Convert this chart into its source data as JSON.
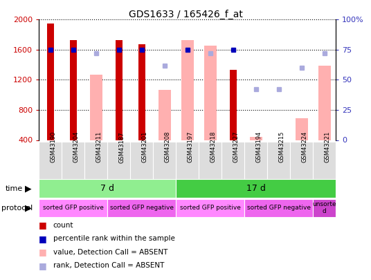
{
  "title": "GDS1633 / 165426_f_at",
  "samples": [
    "GSM43190",
    "GSM43204",
    "GSM43211",
    "GSM43187",
    "GSM43201",
    "GSM43208",
    "GSM43197",
    "GSM43218",
    "GSM43227",
    "GSM43194",
    "GSM43215",
    "GSM43224",
    "GSM43221"
  ],
  "count_values": [
    1950,
    1730,
    null,
    1730,
    1670,
    null,
    null,
    null,
    1330,
    null,
    null,
    null,
    null
  ],
  "absent_value_bars": [
    null,
    null,
    1270,
    null,
    null,
    1070,
    1730,
    1650,
    null,
    440,
    370,
    690,
    1390
  ],
  "percentile_rank": [
    75,
    75,
    null,
    75,
    75,
    null,
    75,
    null,
    75,
    null,
    null,
    null,
    null
  ],
  "absent_rank": [
    null,
    null,
    72,
    null,
    null,
    62,
    null,
    72,
    null,
    42,
    42,
    60,
    72
  ],
  "ylim_left": [
    400,
    2000
  ],
  "ylim_right": [
    0,
    100
  ],
  "yticks_left": [
    400,
    800,
    1200,
    1600,
    2000
  ],
  "yticks_right": [
    0,
    25,
    50,
    75,
    100
  ],
  "time_groups": [
    {
      "label": "7 d",
      "start": 0,
      "end": 6,
      "color": "#90EE90"
    },
    {
      "label": "17 d",
      "start": 6,
      "end": 13,
      "color": "#44CC44"
    }
  ],
  "protocol_groups": [
    {
      "label": "sorted GFP positive",
      "start": 0,
      "end": 3,
      "color": "#FF88FF"
    },
    {
      "label": "sorted GFP negative",
      "start": 3,
      "end": 6,
      "color": "#EE66EE"
    },
    {
      "label": "sorted GFP positive",
      "start": 6,
      "end": 9,
      "color": "#FF88FF"
    },
    {
      "label": "sorted GFP negative",
      "start": 9,
      "end": 12,
      "color": "#EE66EE"
    },
    {
      "label": "unsorte\nd",
      "start": 12,
      "end": 13,
      "color": "#CC44CC"
    }
  ],
  "count_color": "#CC0000",
  "absent_bar_color": "#FFB0B0",
  "percentile_color": "#0000BB",
  "absent_rank_color": "#AAAADD",
  "axis_left_color": "#CC0000",
  "axis_right_color": "#3333BB",
  "sample_cell_color": "#DDDDDD",
  "legend_items": [
    {
      "color": "#CC0000",
      "label": "count"
    },
    {
      "color": "#0000BB",
      "label": "percentile rank within the sample"
    },
    {
      "color": "#FFB0B0",
      "label": "value, Detection Call = ABSENT"
    },
    {
      "color": "#AAAADD",
      "label": "rank, Detection Call = ABSENT"
    }
  ]
}
